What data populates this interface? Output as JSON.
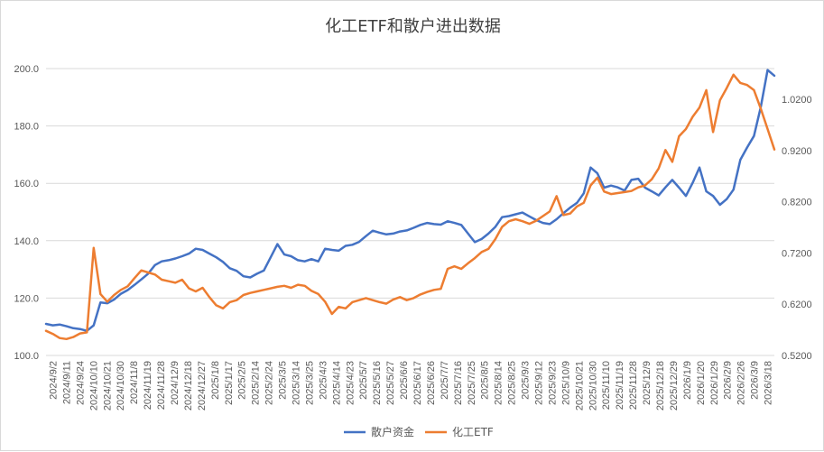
{
  "chart_data": {
    "type": "line",
    "title": "化工ETF和散户进出数据",
    "legend_position": "bottom",
    "grid": {
      "horizontal": true,
      "vertical": false
    },
    "y_left": {
      "min": 100,
      "max": 200,
      "ticks": [
        "100.0",
        "120.0",
        "140.0",
        "160.0",
        "180.0",
        "200.0"
      ]
    },
    "y_right": {
      "min": 0.52,
      "max": 1.08,
      "ticks": [
        "0.5200",
        "0.6200",
        "0.7200",
        "0.8200",
        "0.9200",
        "1.0200"
      ]
    },
    "x_tick_labels": [
      "2024/9/2",
      "2024/9/11",
      "2024/9/24",
      "2024/10/10",
      "2024/10/21",
      "2024/10/30",
      "2024/11/8",
      "2024/11/19",
      "2024/11/28",
      "2024/12/9",
      "2024/12/18",
      "2024/12/27",
      "2025/1/8",
      "2025/1/17",
      "2025/2/5",
      "2025/2/14",
      "2025/2/24",
      "2025/3/5",
      "2025/3/14",
      "2025/3/25",
      "2025/4/3",
      "2025/4/14",
      "2025/4/23",
      "2025/5/7",
      "2025/5/16",
      "2025/5/27",
      "2025/6/6",
      "2025/6/17",
      "2025/6/26",
      "2025/7/7",
      "2025/7/16",
      "2025/7/25",
      "2025/8/5",
      "2025/8/14",
      "2025/8/25",
      "2025/9/3",
      "2025/9/12",
      "2025/9/23",
      "2025/10/9",
      "2025/10/21",
      "2025/10/30",
      "2025/11/10",
      "2025/11/19",
      "2025/11/28",
      "2025/12/9",
      "2025/12/18",
      "2025/12/29",
      "2026/1/9",
      "2026/1/20",
      "2026/1/29",
      "2026/2/9",
      "2026/2/26",
      "2026/3/9",
      "2026/3/18"
    ],
    "series": [
      {
        "name": "散户资金",
        "color": "#4472c4",
        "axis": "left",
        "values": [
          111,
          110.5,
          110.8,
          110.2,
          109.5,
          109.2,
          108.6,
          110.5,
          118.5,
          118.2,
          119.5,
          121.5,
          122.8,
          124.6,
          126.5,
          128.5,
          131.5,
          132.8,
          133.2,
          133.8,
          134.6,
          135.5,
          137.2,
          136.8,
          135.5,
          134.2,
          132.6,
          130.4,
          129.5,
          127.6,
          127.2,
          128.5,
          129.6,
          134.2,
          138.8,
          135.2,
          134.6,
          133.2,
          132.8,
          133.6,
          132.8,
          137.2,
          136.8,
          136.5,
          138.2,
          138.6,
          139.6,
          141.6,
          143.5,
          142.8,
          142.2,
          142.5,
          143.2,
          143.6,
          144.5,
          145.5,
          146.2,
          145.8,
          145.6,
          146.8,
          146.2,
          145.5,
          142.5,
          139.5,
          140.6,
          142.5,
          144.8,
          148.2,
          148.6,
          149.2,
          149.8,
          148.5,
          147.2,
          146.2,
          145.8,
          147.5,
          149.6,
          151.5,
          153.2,
          156.5,
          165.5,
          163.5,
          158.5,
          159.2,
          158.6,
          157.5,
          161.2,
          161.6,
          158.5,
          157.2,
          155.8,
          158.6,
          161.2,
          158.5,
          155.6,
          160.2,
          165.5,
          157.2,
          155.6,
          152.5,
          154.5,
          157.8,
          168.2,
          172.5,
          176.5,
          186.5,
          199.5,
          197.5
        ]
      },
      {
        "name": "化工ETF",
        "color": "#ed7d31",
        "axis": "right",
        "values": [
          0.568,
          0.562,
          0.554,
          0.552,
          0.556,
          0.563,
          0.565,
          0.73,
          0.64,
          0.625,
          0.638,
          0.648,
          0.655,
          0.671,
          0.686,
          0.682,
          0.678,
          0.668,
          0.665,
          0.662,
          0.668,
          0.651,
          0.645,
          0.652,
          0.634,
          0.618,
          0.612,
          0.624,
          0.628,
          0.638,
          0.642,
          0.645,
          0.648,
          0.651,
          0.654,
          0.656,
          0.652,
          0.658,
          0.656,
          0.646,
          0.64,
          0.625,
          0.601,
          0.615,
          0.612,
          0.624,
          0.628,
          0.632,
          0.628,
          0.624,
          0.621,
          0.629,
          0.634,
          0.628,
          0.632,
          0.639,
          0.644,
          0.648,
          0.65,
          0.689,
          0.694,
          0.689,
          0.7,
          0.71,
          0.722,
          0.728,
          0.747,
          0.771,
          0.782,
          0.786,
          0.782,
          0.777,
          0.783,
          0.792,
          0.801,
          0.831,
          0.794,
          0.797,
          0.811,
          0.818,
          0.852,
          0.867,
          0.84,
          0.835,
          0.837,
          0.839,
          0.841,
          0.848,
          0.852,
          0.864,
          0.885,
          0.921,
          0.898,
          0.948,
          0.962,
          0.986,
          1.004,
          1.038,
          0.956,
          1.018,
          1.042,
          1.068,
          1.052,
          1.048,
          1.038,
          1.002,
          0.962,
          0.922
        ]
      }
    ]
  }
}
